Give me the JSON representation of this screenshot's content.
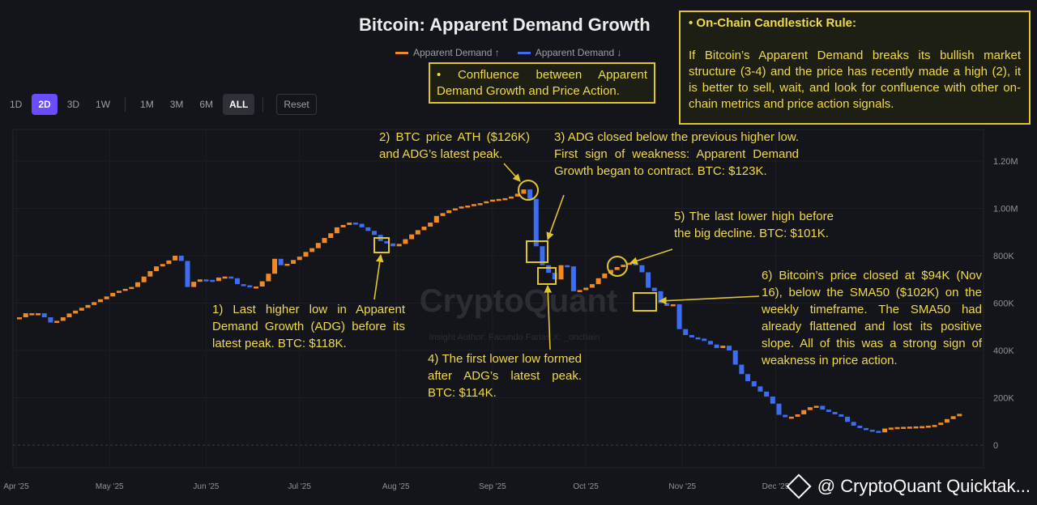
{
  "title": "Bitcoin: Apparent Demand Growth",
  "legend": [
    {
      "label": "Apparent Demand ↑",
      "color": "#f08a24"
    },
    {
      "label": "Apparent Demand ↓",
      "color": "#3d6df2"
    }
  ],
  "timeframes": [
    "1D",
    "2D",
    "3D",
    "1W",
    "1M",
    "3M",
    "6M",
    "ALL"
  ],
  "active_timeframe": "2D",
  "active_range": "ALL",
  "reset_label": "Reset",
  "watermark_bg": "CryptoQuant",
  "watermark_sub": "Insight Author: Facundo Farias X: _onchain",
  "watermark_brand": "@ CryptoQuant Quicktak...",
  "notes": {
    "confluence": "• Confluence between Apparent Demand Growth and Price Action.",
    "rule_title": "• On-Chain Candlestick Rule:",
    "rule_body": "If Bitcoin’s Apparent Demand breaks its bullish market structure (3-4) and the price has recently made a high (2), it is better to sell, wait, and look for confluence with other on-chain metrics and price action signals."
  },
  "annotations": {
    "a1": "1) Last higher low in Apparent Demand Growth (ADG) before its latest peak. BTC: $118K.",
    "a2": "2) BTC price ATH ($126K) and ADG’s latest peak.",
    "a3": "3) ADG closed below the previous higher low. First sign of weakness: Apparent Demand Growth began to contract. BTC: $123K.",
    "a4": "4) The first lower low formed after ADG’s latest peak. BTC: $114K.",
    "a5": "5) The last lower high before the big decline. BTC: $101K.",
    "a6": "6) Bitcoin’s price closed at $94K (Nov 16), below the SMA50 ($102K) on the weekly timeframe. The SMA50 had already flattened and lost its positive slope. All of this was a strong sign of weakness in price action."
  },
  "colors": {
    "up": "#f08a24",
    "down": "#3d6df2",
    "highlight": "#e2c52d"
  },
  "chart_data": {
    "type": "candlestick",
    "title": "Bitcoin: Apparent Demand Growth",
    "y_ticks": [
      0,
      200000,
      400000,
      600000,
      800000,
      1000000,
      1200000
    ],
    "y_tick_labels": [
      "0",
      "200K",
      "400K",
      "600K",
      "800K",
      "1.00M",
      "1.20M"
    ],
    "ylim": [
      0,
      1280000
    ],
    "x_tick_labels": [
      "Apr '25",
      "May '25",
      "Jun '25",
      "Jul '25",
      "Aug '25",
      "Sep '25",
      "Oct '25",
      "Nov '25",
      "Dec '25"
    ],
    "x_label_start": "2025-04-01",
    "period_days": 2,
    "start_date": "2025-04-01",
    "series_closes": [
      540000,
      557000,
      557000,
      557000,
      540000,
      518000,
      525000,
      540000,
      556000,
      568000,
      580000,
      592000,
      604000,
      616000,
      628000,
      643000,
      652000,
      660000,
      668000,
      688000,
      712000,
      735000,
      755000,
      765000,
      780000,
      800000,
      778000,
      668000,
      690000,
      700000,
      698000,
      693000,
      708000,
      712000,
      705000,
      680000,
      675000,
      670000,
      670000,
      692000,
      724000,
      787000,
      760000,
      766000,
      782000,
      796000,
      816000,
      832000,
      854000,
      875000,
      895000,
      920000,
      930000,
      940000,
      935000,
      920000,
      905000,
      888000,
      862000,
      852000,
      840000,
      850000,
      870000,
      890000,
      908000,
      923000,
      940000,
      968000,
      980000,
      992000,
      1000000,
      1008000,
      1012000,
      1018000,
      1022000,
      1030000,
      1037000,
      1040000,
      1043000,
      1050000,
      1062000,
      1080000,
      1040000,
      840000,
      760000,
      728000,
      700000,
      760000,
      755000,
      650000,
      655000,
      665000,
      680000,
      705000,
      725000,
      740000,
      752000,
      762000,
      770000,
      760000,
      730000,
      665000,
      650000,
      600000,
      588000,
      595000,
      490000,
      465000,
      455000,
      450000,
      440000,
      425000,
      410000,
      420000,
      400000,
      340000,
      300000,
      270000,
      248000,
      226000,
      205000,
      175000,
      128000,
      118000,
      120000,
      130000,
      148000,
      160000,
      166000,
      150000,
      140000,
      130000,
      120000,
      98000,
      82000,
      72000,
      65000,
      60000,
      54000,
      70000,
      74000,
      76000,
      77000,
      78000,
      79000,
      80000,
      82000,
      85000,
      95000,
      110000,
      122000,
      132000
    ]
  }
}
